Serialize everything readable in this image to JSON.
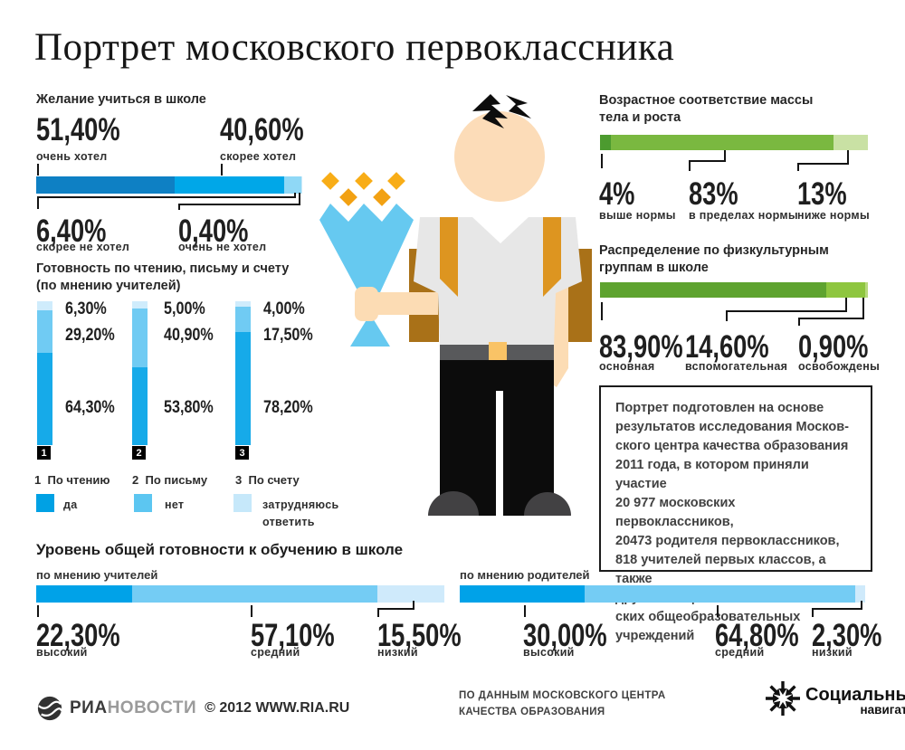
{
  "title": "Портрет московского первоклассника",
  "desire": {
    "header": "Желание учиться в школе",
    "top_callouts": [
      {
        "value": "51,40%",
        "label": "очень хотел"
      },
      {
        "value": "40,60%",
        "label": "скорее хотел"
      }
    ],
    "bottom_callouts": [
      {
        "value": "6,40%",
        "label": "скорее не хотел"
      },
      {
        "value": "0,40%",
        "label": "очень не хотел"
      }
    ],
    "segments": [
      {
        "value": 51.4,
        "color": "#0e80c4"
      },
      {
        "value": 40.6,
        "color": "#00a7e8"
      },
      {
        "value": 6.4,
        "color": "#8fd8f6"
      },
      {
        "value": 0.4,
        "color": "#cdebfa"
      }
    ]
  },
  "readiness": {
    "header": "Готовность по чтению, письму и счету\n(по мнению учителей)",
    "bars": [
      {
        "num": "1",
        "values": [
          "6,30%",
          "29,20%",
          "64,30%"
        ],
        "segments": [
          {
            "value": 6.3,
            "color": "#cfecfc"
          },
          {
            "value": 29.2,
            "color": "#70cbf3"
          },
          {
            "value": 64.3,
            "color": "#16aae9"
          }
        ]
      },
      {
        "num": "2",
        "values": [
          "5,00%",
          "40,90%",
          "53,80%"
        ],
        "segments": [
          {
            "value": 5.0,
            "color": "#cfecfc"
          },
          {
            "value": 40.9,
            "color": "#70cbf3"
          },
          {
            "value": 53.8,
            "color": "#16aae9"
          }
        ]
      },
      {
        "num": "3",
        "values": [
          "4,00%",
          "17,50%",
          "78,20%"
        ],
        "segments": [
          {
            "value": 4.0,
            "color": "#cfecfc"
          },
          {
            "value": 17.5,
            "color": "#70cbf3"
          },
          {
            "value": 78.2,
            "color": "#16aae9"
          }
        ]
      }
    ],
    "legend_items": [
      {
        "num": "1",
        "label": "По чтению"
      },
      {
        "num": "2",
        "label": "По письму"
      },
      {
        "num": "3",
        "label": "По счету"
      }
    ],
    "legend_colors": [
      {
        "label": "да",
        "color": "#00a1e4"
      },
      {
        "label": "нет",
        "color": "#5cc6f1"
      },
      {
        "label": "затрудняюсь ответить",
        "color": "#c6e8fa"
      }
    ]
  },
  "body_mass": {
    "header": "Возрастное соответствие массы\nтела и роста",
    "callouts": [
      {
        "value": "4%",
        "label": "выше нормы"
      },
      {
        "value": "83%",
        "label": "в пределах нормы"
      },
      {
        "value": "13%",
        "label": "ниже нормы"
      }
    ],
    "segments": [
      {
        "value": 4,
        "color": "#4c9b2f"
      },
      {
        "value": 83,
        "color": "#7ab840"
      },
      {
        "value": 13,
        "color": "#c9e1a4"
      }
    ]
  },
  "pe_groups": {
    "header": "Распределение  по физкультурным\nгруппам в школе",
    "callouts": [
      {
        "value": "83,90%",
        "label": "основная"
      },
      {
        "value": "14,60%",
        "label": "вспомогательная"
      },
      {
        "value": "0,90%",
        "label": "освобождены"
      }
    ],
    "segments": [
      {
        "value": 83.9,
        "color": "#5ea32f"
      },
      {
        "value": 14.6,
        "color": "#8ec63f"
      },
      {
        "value": 0.9,
        "color": "#b8da7e"
      }
    ]
  },
  "overall": {
    "header": "Уровень общей готовности к обучению в школе",
    "teachers": {
      "sublabel": "по мнению учителей",
      "callouts": [
        {
          "value": "22,30%",
          "label": "высокий"
        },
        {
          "value": "57,10%",
          "label": "средний"
        },
        {
          "value": "15,50%",
          "label": "низкий"
        }
      ],
      "segments": [
        {
          "value": 22.3,
          "color": "#00a2e8"
        },
        {
          "value": 57.1,
          "color": "#74ccf4"
        },
        {
          "value": 15.5,
          "color": "#cfeafb"
        }
      ]
    },
    "parents": {
      "sublabel": "по мнению родителей",
      "callouts": [
        {
          "value": "30,00%",
          "label": "высокий"
        },
        {
          "value": "64,80%",
          "label": "средний"
        },
        {
          "value": "2,30%",
          "label": "низкий"
        }
      ],
      "segments": [
        {
          "value": 30.0,
          "color": "#00a2e8"
        },
        {
          "value": 64.8,
          "color": "#74ccf4"
        },
        {
          "value": 2.3,
          "color": "#cfeafb"
        }
      ]
    }
  },
  "infobox": {
    "text": "Портрет подготовлен на основе\nрезультатов исследования Москов-\nского центра качества образования\n2011 года, в котором приняли участие\n20 977 московских первоклассников,\n20473 родителя первоклассников,\n818 учителей первых классов, а также\nдругие специалисты из 317 москов-\nских общеобразовательных\nучреждений"
  },
  "footer": {
    "ria_brand_dark": "РИА",
    "ria_brand_gray": "НОВОСТИ",
    "copyright": "© 2012 WWW.RIA.RU",
    "source_line1": "ПО ДАННЫМ МОСКОВСКОГО ЦЕНТРА",
    "source_line2": "КАЧЕСТВА ОБРАЗОВАНИЯ",
    "socnav_line1": "Социальный",
    "socnav_line2": "навигатор"
  },
  "chart_data": [
    {
      "type": "bar",
      "title": "Желание учиться в школе",
      "orientation": "horizontal",
      "stacked": true,
      "unit": "%",
      "categories": [
        "очень хотел",
        "скорее хотел",
        "скорее не хотел",
        "очень не хотел"
      ],
      "values": [
        51.4,
        40.6,
        6.4,
        0.4
      ]
    },
    {
      "type": "bar",
      "title": "Готовность по чтению, письму и счету (по мнению учителей)",
      "orientation": "vertical",
      "stacked": true,
      "unit": "%",
      "categories": [
        "По чтению",
        "По письму",
        "По счету"
      ],
      "series": [
        {
          "name": "да",
          "values": [
            64.3,
            53.8,
            78.2
          ]
        },
        {
          "name": "нет",
          "values": [
            29.2,
            40.9,
            17.5
          ]
        },
        {
          "name": "затрудняюсь ответить",
          "values": [
            6.3,
            5.0,
            4.0
          ]
        }
      ]
    },
    {
      "type": "bar",
      "title": "Возрастное соответствие массы тела и роста",
      "orientation": "horizontal",
      "stacked": true,
      "unit": "%",
      "categories": [
        "выше нормы",
        "в пределах нормы",
        "ниже нормы"
      ],
      "values": [
        4,
        83,
        13
      ]
    },
    {
      "type": "bar",
      "title": "Распределение по физкультурным группам в школе",
      "orientation": "horizontal",
      "stacked": true,
      "unit": "%",
      "categories": [
        "основная",
        "вспомогательная",
        "освобождены"
      ],
      "values": [
        83.9,
        14.6,
        0.9
      ]
    },
    {
      "type": "bar",
      "title": "Уровень общей готовности к обучению в школе",
      "orientation": "horizontal",
      "stacked": true,
      "unit": "%",
      "categories": [
        "высокий",
        "средний",
        "низкий"
      ],
      "series": [
        {
          "name": "по мнению учителей",
          "values": [
            22.3,
            57.1,
            15.5
          ]
        },
        {
          "name": "по мнению родителей",
          "values": [
            30.0,
            64.8,
            2.3
          ]
        }
      ]
    }
  ]
}
